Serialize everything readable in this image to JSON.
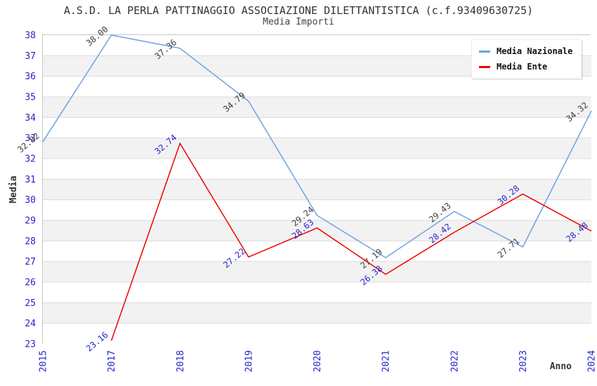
{
  "header": {
    "title": "A.S.D. LA PERLA PATTINAGGIO ASSOCIAZIONE DILETTANTISTICA (c.f.93409630725)",
    "subtitle": "Media Importi"
  },
  "legend": {
    "items": [
      {
        "label": "Media Nazionale",
        "color": "#6CA3E3"
      },
      {
        "label": "Media Ente",
        "color": "#EE0000"
      }
    ]
  },
  "chart_data": {
    "type": "line",
    "title": "A.S.D. LA PERLA PATTINAGGIO ASSOCIAZIONE DILETTANTISTICA (c.f.93409630725)",
    "subtitle": "Media Importi",
    "xlabel": "Anno",
    "ylabel": "Media",
    "categories": [
      "2015",
      "2017",
      "2018",
      "2019",
      "2020",
      "2021",
      "2022",
      "2023",
      "2024"
    ],
    "series": [
      {
        "name": "Media Nazionale",
        "color": "#6CA3E3",
        "label_color": "#3c3c3c",
        "values": [
          32.82,
          38.0,
          37.36,
          34.79,
          29.24,
          27.19,
          29.43,
          27.71,
          34.32
        ]
      },
      {
        "name": "Media Ente",
        "color": "#EE0000",
        "label_color": "#2424cc",
        "values": [
          null,
          23.16,
          32.74,
          27.22,
          28.63,
          26.38,
          28.42,
          30.28,
          28.48
        ]
      }
    ],
    "ylim": [
      23,
      38
    ],
    "ytick_step": 1,
    "grid": true,
    "legend_position": "top-right",
    "band_colors": [
      "#ffffff",
      "#f2f2f2"
    ],
    "colors": {
      "tick_label": "#2424cc",
      "grid_line": "#dcdcdc",
      "plot_border": "#c6c6c6",
      "axis_title": "#333333"
    }
  }
}
